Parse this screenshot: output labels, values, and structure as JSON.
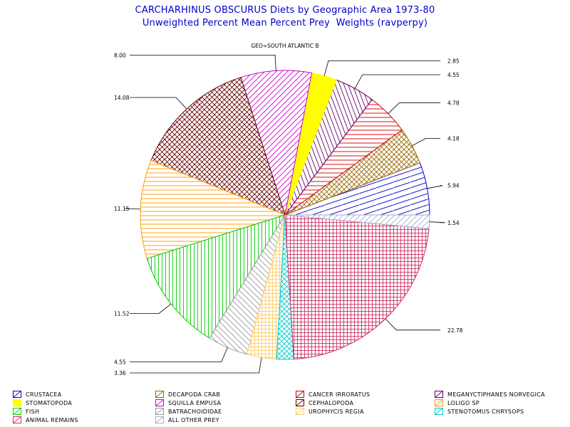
{
  "title": {
    "line1": "CARCHARHINUS OBSCURUS Diets by Geographic Area 1973-80",
    "line2": "Unweighted Percent Mean Percent Prey  Weights (ravperpy)"
  },
  "chart_data": {
    "type": "pie",
    "subtitle": "GEO=SOUTH ATLANTIC B",
    "slices": [
      {
        "label": "CRUSTACEA",
        "value": 5.94,
        "color": "#0000cc",
        "pattern": "hatch-steep"
      },
      {
        "label": "DECAPODA CRAB",
        "value": 4.18,
        "color": "#996600",
        "pattern": "crosshatch-diag"
      },
      {
        "label": "CANCER IRRORATUS",
        "value": 4.78,
        "color": "#cc0000",
        "pattern": "hatch-horizontal"
      },
      {
        "label": "MEGANYCTIPHANES NORVEGICA",
        "value": 4.55,
        "color": "#660066",
        "pattern": "hatch-steep-back"
      },
      {
        "label": "STOMATOPODA",
        "value": 2.85,
        "color": "#ffff00",
        "pattern": "solid"
      },
      {
        "label": "SQUILLA EMPUSA",
        "value": 8.0,
        "color": "#cc00cc",
        "pattern": "hatch-diag"
      },
      {
        "label": "CEPHALOPODA",
        "value": 14.08,
        "color": "#660000",
        "pattern": "crosshatch-diag"
      },
      {
        "label": "LOLIGO SP",
        "value": 11.15,
        "color": "#ff9900",
        "pattern": "hatch-horizontal"
      },
      {
        "label": "FISH",
        "value": 11.52,
        "color": "#00cc00",
        "pattern": "hatch-vertical"
      },
      {
        "label": "BATRACHOIDIDAE",
        "value": 4.55,
        "color": "#999999",
        "pattern": "hatch-diag-back"
      },
      {
        "label": "UROPHYCIS REGIA",
        "value": 3.36,
        "color": "#ffcc66",
        "pattern": "crosshatch-square"
      },
      {
        "label": "STENOTOMUS CHRYSOPS",
        "value": 1.92,
        "color": "#00cccc",
        "pattern": "crosshatch-diag"
      },
      {
        "label": "ANIMAL REMAINS",
        "value": 22.78,
        "color": "#cc3366",
        "pattern": "crosshatch-square"
      },
      {
        "label": "ALL OTHER PREY",
        "value": 1.54,
        "color": "#aaaacc",
        "pattern": "hatch-diag"
      }
    ],
    "data_labels": [
      {
        "text": "5.94"
      },
      {
        "text": "4.18"
      },
      {
        "text": "4.78"
      },
      {
        "text": "4.55"
      },
      {
        "text": "2.85"
      },
      {
        "text": "8.00"
      },
      {
        "text": "14.08"
      },
      {
        "text": "11.15"
      },
      {
        "text": "11.52"
      },
      {
        "text": "4.55"
      },
      {
        "text": "3.36"
      },
      {
        "text": ""
      },
      {
        "text": "22.78"
      },
      {
        "text": "1.54"
      }
    ],
    "legend_position": "bottom"
  }
}
